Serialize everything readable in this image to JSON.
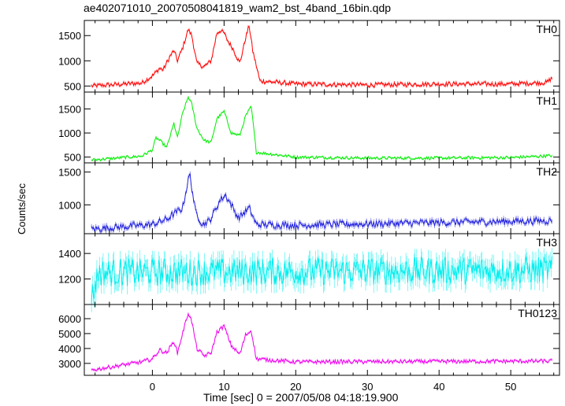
{
  "figure": {
    "title": "ae402071010_20070508041819_wam2_bst_4band_16bin.qdp",
    "ylabel": "Counts/sec",
    "xlabel": "Time [sec] 0 = 2007/05/08 04:18:19.900"
  },
  "chart_data": {
    "type": "line",
    "layout": "stacked-panels",
    "shared_x": {
      "range": [
        -9.5,
        56.8
      ],
      "ticks": [
        0,
        10,
        20,
        30,
        40,
        50
      ],
      "tick_labels": [
        "0",
        "10",
        "20",
        "30",
        "40",
        "50"
      ]
    },
    "panels": [
      {
        "label": "TH0",
        "color": "#ff0000",
        "ylim": [
          380,
          1800
        ],
        "yticks": [
          500,
          1000,
          1500
        ],
        "ytick_labels": [
          "500",
          "1000",
          "1500"
        ],
        "baseline": 560,
        "noise": 45,
        "x": [
          -8.5,
          -1.5,
          0,
          1,
          1.5,
          2.5,
          3,
          3.5,
          4.2,
          5,
          5.5,
          6.2,
          7.2,
          8.2,
          9,
          9.5,
          10,
          10.5,
          11.2,
          12.2,
          13,
          13.5,
          14,
          15,
          20,
          30,
          40,
          50,
          55,
          55.8
        ],
        "values": [
          500,
          560,
          700,
          850,
          820,
          1100,
          1200,
          1000,
          1250,
          1620,
          1500,
          950,
          880,
          1000,
          1550,
          1600,
          1550,
          1400,
          1250,
          950,
          1450,
          1700,
          1200,
          600,
          540,
          520,
          540,
          540,
          570,
          660
        ]
      },
      {
        "label": "TH1",
        "color": "#00ee00",
        "ylim": [
          380,
          1850
        ],
        "yticks": [
          500,
          1000,
          1500
        ],
        "ytick_labels": [
          "500",
          "1000",
          "1500"
        ],
        "baseline": 480,
        "noise": 30,
        "x": [
          -8.5,
          -1.5,
          0,
          0.5,
          1,
          2,
          3,
          3.5,
          4.2,
          5,
          5.5,
          6.2,
          7.2,
          8.2,
          9,
          10,
          11,
          12.2,
          13,
          13.8,
          14.5,
          20,
          30,
          40,
          50,
          55.8
        ],
        "values": [
          440,
          520,
          650,
          900,
          850,
          700,
          1200,
          900,
          1400,
          1750,
          1600,
          1100,
          850,
          800,
          1300,
          1450,
          1000,
          950,
          1350,
          1550,
          600,
          500,
          480,
          480,
          490,
          530
        ]
      },
      {
        "label": "TH2",
        "color": "#2020dd",
        "ylim": [
          560,
          1640
        ],
        "yticks": [
          1000,
          1500
        ],
        "ytick_labels": [
          "1000",
          "1500"
        ],
        "baseline": 690,
        "noise": 55,
        "x": [
          -8.5,
          0,
          2,
          3,
          4.2,
          5.2,
          6,
          7,
          8,
          9.5,
          10.2,
          11,
          12,
          13.5,
          14.5,
          20,
          55.8
        ],
        "values": [
          630,
          700,
          780,
          860,
          950,
          1480,
          900,
          700,
          760,
          1080,
          1150,
          1000,
          800,
          950,
          700,
          690,
          760
        ]
      },
      {
        "label": "TH3",
        "color": "#00eeee",
        "ylim": [
          1000,
          1555
        ],
        "yticks": [
          1200,
          1400
        ],
        "ytick_labels": [
          "1200",
          "1400"
        ],
        "baseline": 1280,
        "noise": 110,
        "x": [
          -8.5,
          -7.5,
          55.8
        ],
        "values": [
          1050,
          1250,
          1270
        ]
      },
      {
        "label": "TH0123",
        "color": "#ee00ee",
        "ylim": [
          2200,
          6950
        ],
        "yticks": [
          3000,
          4000,
          5000,
          6000
        ],
        "ytick_labels": [
          "3000",
          "4000",
          "5000",
          "6000"
        ],
        "baseline": 3020,
        "noise": 130,
        "x": [
          -8.5,
          -1.5,
          0,
          1,
          2,
          3,
          3.5,
          4.2,
          5,
          5.5,
          6.2,
          7.2,
          8.2,
          9,
          10,
          11,
          12.2,
          13,
          13.8,
          14.5,
          20,
          55.8
        ],
        "values": [
          2550,
          3100,
          3300,
          3900,
          3700,
          4500,
          3700,
          5000,
          6400,
          5800,
          4000,
          3500,
          3700,
          5100,
          5500,
          4200,
          3600,
          4900,
          5200,
          3300,
          3100,
          3150
        ]
      }
    ]
  }
}
